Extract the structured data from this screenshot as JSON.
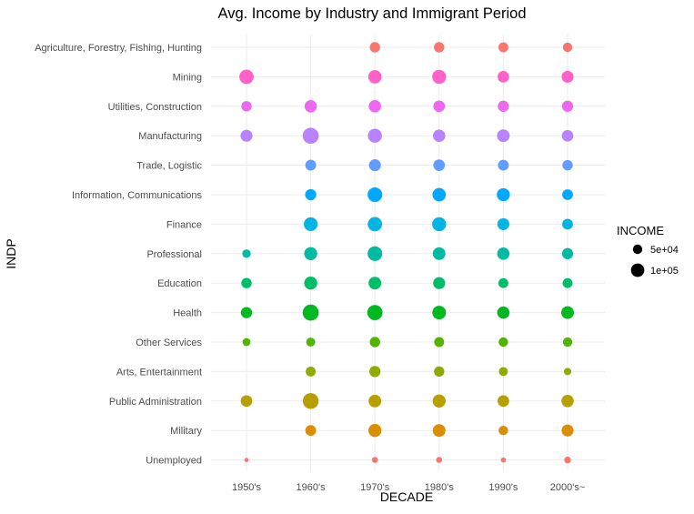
{
  "chart_data": {
    "type": "scatter",
    "title": "Avg. Income by Industry and Immigrant Period",
    "xlabel": "DECADE",
    "ylabel": "INDP",
    "x_categories": [
      "1950's",
      "1960's",
      "1970's",
      "1980's",
      "1990's",
      "2000's~"
    ],
    "y_categories": [
      "Agriculture, Forestry, Fishing, Hunting",
      "Mining",
      "Utilities, Construction",
      "Manufacturing",
      "Trade, Logistic",
      "Information, Communications",
      "Finance",
      "Professional",
      "Education",
      "Health",
      "Other Services",
      "Arts, Entertainment",
      "Public Administration",
      "Military",
      "Unemployed"
    ],
    "grid": true,
    "size_legend": {
      "title": "INCOME",
      "position": "right",
      "entries": [
        {
          "label": "5e+04",
          "value": 50000
        },
        {
          "label": "1e+05",
          "value": 100000
        }
      ]
    },
    "series": [
      {
        "category": "Agriculture, Forestry, Fishing, Hunting",
        "color": "#F8766D",
        "values": [
          null,
          null,
          60000,
          60000,
          55000,
          50000
        ]
      },
      {
        "category": "Mining",
        "color": "#FF61C9",
        "values": [
          115000,
          null,
          100000,
          110000,
          75000,
          80000
        ]
      },
      {
        "category": "Utilities, Construction",
        "color": "#EC69EF",
        "values": [
          60000,
          85000,
          85000,
          75000,
          70000,
          70000
        ]
      },
      {
        "category": "Manufacturing",
        "color": "#B983FF",
        "values": [
          80000,
          145000,
          110000,
          85000,
          90000,
          75000
        ]
      },
      {
        "category": "Trade, Logistic",
        "color": "#619CFF",
        "values": [
          null,
          65000,
          80000,
          75000,
          65000,
          60000
        ]
      },
      {
        "category": "Information, Communications",
        "color": "#00A9FF",
        "values": [
          null,
          70000,
          120000,
          100000,
          95000,
          65000
        ]
      },
      {
        "category": "Finance",
        "color": "#00B4E4",
        "values": [
          null,
          105000,
          115000,
          110000,
          80000,
          65000
        ]
      },
      {
        "category": "Professional",
        "color": "#00BBA2",
        "values": [
          40000,
          95000,
          120000,
          90000,
          85000,
          70000
        ]
      },
      {
        "category": "Education",
        "color": "#00BE67",
        "values": [
          60000,
          95000,
          90000,
          80000,
          55000,
          55000
        ]
      },
      {
        "category": "Health",
        "color": "#00B81F",
        "values": [
          70000,
          145000,
          130000,
          105000,
          85000,
          90000
        ]
      },
      {
        "category": "Other Services",
        "color": "#53B400",
        "values": [
          35000,
          45000,
          60000,
          55000,
          50000,
          50000
        ]
      },
      {
        "category": "Arts, Entertainment",
        "color": "#8FAA00",
        "values": [
          null,
          55000,
          70000,
          60000,
          45000,
          30000
        ]
      },
      {
        "category": "Public Administration",
        "color": "#B79F00",
        "values": [
          75000,
          140000,
          90000,
          95000,
          75000,
          85000
        ]
      },
      {
        "category": "Military",
        "color": "#DB8E00",
        "values": [
          null,
          65000,
          95000,
          90000,
          50000,
          80000
        ]
      },
      {
        "category": "Unemployed",
        "color": "#F8766D",
        "values": [
          10000,
          null,
          20000,
          20000,
          15000,
          25000
        ]
      }
    ]
  }
}
